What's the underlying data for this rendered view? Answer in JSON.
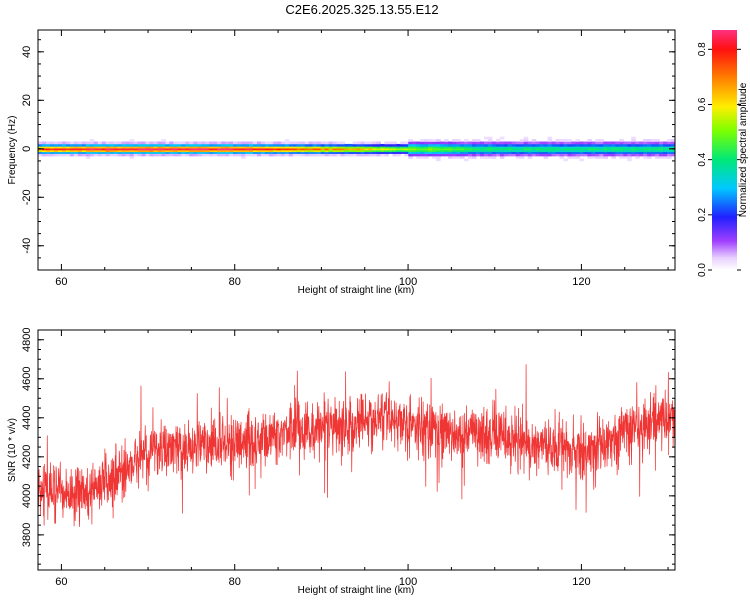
{
  "title": "C2E6.2025.325.13.55.E12",
  "chart_data": [
    {
      "type": "heatmap",
      "xlabel": "Height of straight line (km)",
      "ylabel": "Frequency (Hz)",
      "xlim": [
        57.3,
        130.8
      ],
      "ylim": [
        -50,
        49
      ],
      "xticks": [
        60,
        80,
        100,
        120
      ],
      "xtick_labels": [
        "60",
        "80",
        "100",
        "120"
      ],
      "yticks": [
        -40,
        -20,
        0,
        20,
        40
      ],
      "ytick_labels": [
        "-40",
        "-20",
        "0",
        "20",
        "40"
      ],
      "colorbar": {
        "label": "Normalized spectral amplitude",
        "range": [
          0,
          0.87
        ],
        "ticks": [
          0.0,
          0.2,
          0.4,
          0.6,
          0.8
        ],
        "tick_labels": [
          "0.0",
          "0.2",
          "0.4",
          "0.6",
          "0.8"
        ]
      },
      "band": {
        "center_frequency": 0,
        "profile": [
          {
            "x": 57.3,
            "peak": 0.76
          },
          {
            "x": 65,
            "peak": 0.84
          },
          {
            "x": 72,
            "peak": 0.85
          },
          {
            "x": 80,
            "peak": 0.84
          },
          {
            "x": 88,
            "peak": 0.74
          },
          {
            "x": 95,
            "peak": 0.62
          },
          {
            "x": 102,
            "peak": 0.48
          },
          {
            "x": 110,
            "peak": 0.4
          },
          {
            "x": 120,
            "peak": 0.38
          },
          {
            "x": 130.8,
            "peak": 0.4
          }
        ]
      }
    },
    {
      "type": "line",
      "xlabel": "Height of straight line (km)",
      "ylabel": "SNR (10 * v/v)",
      "xlim": [
        57.3,
        130.8
      ],
      "ylim": [
        3620,
        4850
      ],
      "xticks": [
        60,
        80,
        100,
        120
      ],
      "xtick_labels": [
        "60",
        "80",
        "100",
        "120"
      ],
      "yticks": [
        3800,
        4000,
        4200,
        4400,
        4600,
        4800
      ],
      "ytick_labels": [
        "3800",
        "4000",
        "4200",
        "4400",
        "4600",
        "4800"
      ],
      "series": [
        {
          "color": "#f03535",
          "trend": [
            [
              57.3,
              4050
            ],
            [
              62,
              4000
            ],
            [
              66,
              4090
            ],
            [
              70,
              4220
            ],
            [
              76,
              4260
            ],
            [
              82,
              4280
            ],
            [
              86,
              4330
            ],
            [
              92,
              4360
            ],
            [
              98,
              4390
            ],
            [
              104,
              4330
            ],
            [
              110,
              4310
            ],
            [
              116,
              4250
            ],
            [
              120,
              4210
            ],
            [
              124,
              4310
            ],
            [
              128,
              4380
            ],
            [
              130.8,
              4410
            ]
          ],
          "noise_amplitude": 130
        }
      ]
    }
  ]
}
